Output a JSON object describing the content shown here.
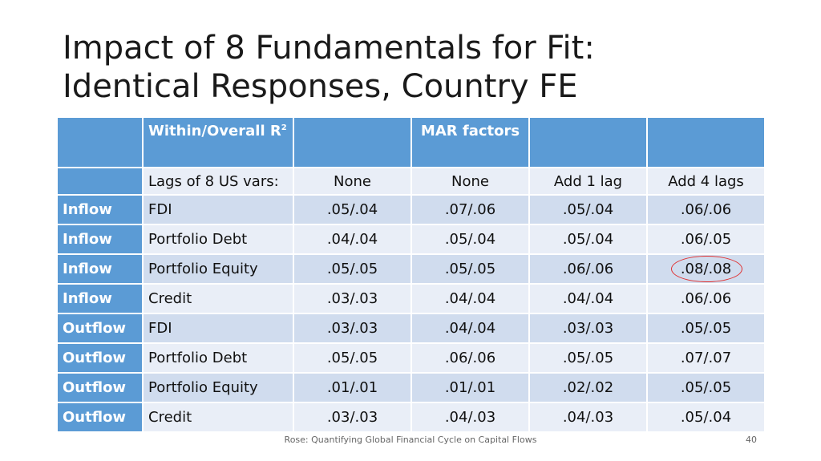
{
  "title": {
    "line1": "Impact of 8 Fundamentals for Fit:",
    "line2": "Identical Responses, Country FE"
  },
  "table": {
    "header": {
      "col1": "Within/Overall R",
      "col1_sup": "2",
      "col3": "MAR factors"
    },
    "subheader": {
      "label": "Lags of 8 US vars:",
      "c1": "None",
      "c2": "None",
      "c3": "Add 1 lag",
      "c4": "Add 4 lags"
    },
    "rows": [
      {
        "dir": "Inflow",
        "flow": "FDI",
        "v": [
          ".05/.04",
          ".07/.06",
          ".05/.04",
          ".06/.06"
        ]
      },
      {
        "dir": "Inflow",
        "flow": "Portfolio Debt",
        "v": [
          ".04/.04",
          ".05/.04",
          ".05/.04",
          ".06/.05"
        ]
      },
      {
        "dir": "Inflow",
        "flow": "Portfolio Equity",
        "v": [
          ".05/.05",
          ".05/.05",
          ".06/.06",
          ".08/.08"
        ]
      },
      {
        "dir": "Inflow",
        "flow": "Credit",
        "v": [
          ".03/.03",
          ".04/.04",
          ".04/.04",
          ".06/.06"
        ]
      },
      {
        "dir": "Outflow",
        "flow": "FDI",
        "v": [
          ".03/.03",
          ".04/.04",
          ".03/.03",
          ".05/.05"
        ]
      },
      {
        "dir": "Outflow",
        "flow": "Portfolio Debt",
        "v": [
          ".05/.05",
          ".06/.06",
          ".05/.05",
          ".07/.07"
        ]
      },
      {
        "dir": "Outflow",
        "flow": "Portfolio Equity",
        "v": [
          ".01/.01",
          ".01/.01",
          ".02/.02",
          ".05/.05"
        ]
      },
      {
        "dir": "Outflow",
        "flow": "Credit",
        "v": [
          ".03/.03",
          ".04/.03",
          ".04/.03",
          ".05/.04"
        ]
      }
    ]
  },
  "footer": {
    "text": "Rose: Quantifying Global Financial Cycle on Capital Flows",
    "page": "40"
  },
  "colors": {
    "header_blue": "#5b9bd5",
    "row_dark": "#d0dcee",
    "row_light": "#e9eef7",
    "highlight": "#e03030"
  }
}
